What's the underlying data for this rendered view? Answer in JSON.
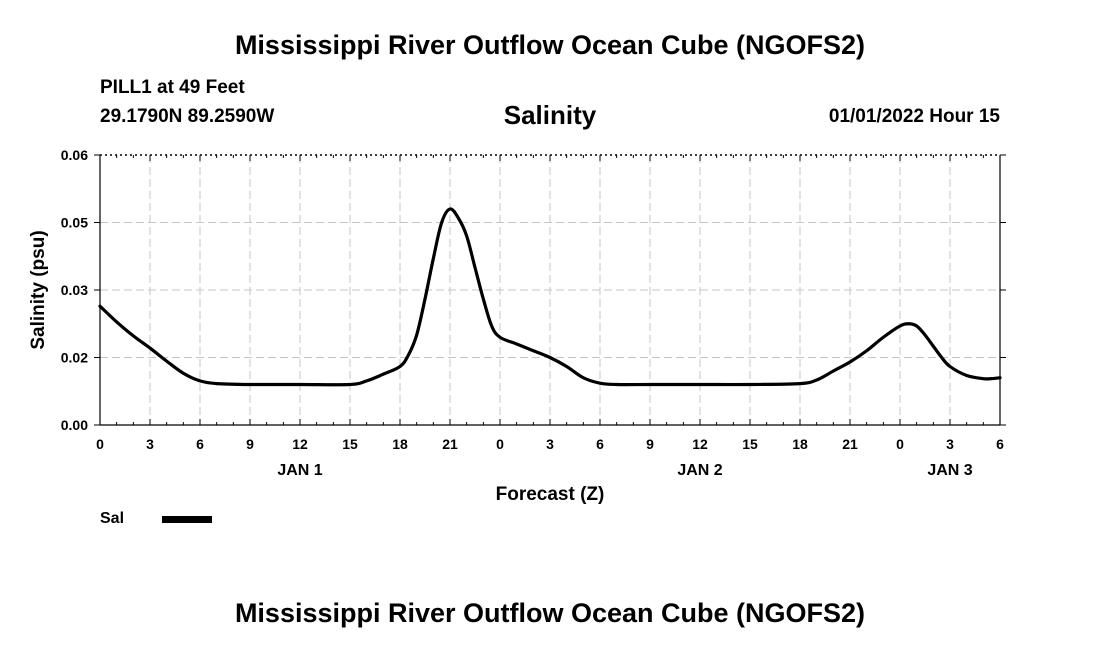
{
  "header": {
    "title": "Mississippi River Outflow Ocean Cube (NGOFS2)",
    "station": "PILL1 at 49 Feet",
    "coordinates": "29.1790N  89.2590W",
    "datetime": "01/01/2022 Hour 15"
  },
  "footer": {
    "title": "Mississippi River Outflow Ocean Cube (NGOFS2)"
  },
  "chart_data": {
    "type": "line",
    "title": "Salinity",
    "xlabel": "Forecast (Z)",
    "ylabel": "Salinity (psu)",
    "x_unit": "forecast hours from 2022-01-01 00Z",
    "xlim": [
      0,
      54
    ],
    "ylim": [
      0,
      0.06
    ],
    "grid": true,
    "y_ticks": [
      {
        "value": 0.0,
        "label": "0.00"
      },
      {
        "value": 0.015,
        "label": "0.02"
      },
      {
        "value": 0.03,
        "label": "0.03"
      },
      {
        "value": 0.045,
        "label": "0.05"
      },
      {
        "value": 0.06,
        "label": "0.06"
      }
    ],
    "x_ticks": [
      {
        "value": 0,
        "label": "0"
      },
      {
        "value": 3,
        "label": "3"
      },
      {
        "value": 6,
        "label": "6"
      },
      {
        "value": 9,
        "label": "9"
      },
      {
        "value": 12,
        "label": "12"
      },
      {
        "value": 15,
        "label": "15"
      },
      {
        "value": 18,
        "label": "18"
      },
      {
        "value": 21,
        "label": "21"
      },
      {
        "value": 24,
        "label": "0"
      },
      {
        "value": 27,
        "label": "3"
      },
      {
        "value": 30,
        "label": "6"
      },
      {
        "value": 33,
        "label": "9"
      },
      {
        "value": 36,
        "label": "12"
      },
      {
        "value": 39,
        "label": "15"
      },
      {
        "value": 42,
        "label": "18"
      },
      {
        "value": 45,
        "label": "21"
      },
      {
        "value": 48,
        "label": "0"
      },
      {
        "value": 51,
        "label": "3"
      },
      {
        "value": 54,
        "label": "6"
      }
    ],
    "date_labels": [
      {
        "value": 12,
        "label": "JAN 1"
      },
      {
        "value": 36,
        "label": "JAN 2"
      },
      {
        "value": 51,
        "label": "JAN 3"
      }
    ],
    "legend_position": "bottom-left",
    "series": [
      {
        "name": "Sal",
        "color": "#000000",
        "x": [
          0,
          1,
          2,
          3,
          4,
          5,
          6,
          7,
          9,
          12,
          15,
          16,
          17,
          18,
          18.5,
          19,
          19.5,
          20,
          20.5,
          21,
          21.5,
          22,
          22.5,
          23,
          23.5,
          24,
          25,
          26,
          27,
          28,
          29,
          30,
          31,
          33,
          36,
          39,
          42,
          43,
          44,
          45,
          46,
          47,
          48,
          48.5,
          49,
          49.5,
          50,
          50.5,
          51,
          52,
          53,
          53.5,
          54
        ],
        "values": [
          0.0264,
          0.0229,
          0.0198,
          0.0171,
          0.0142,
          0.0115,
          0.0098,
          0.0092,
          0.009,
          0.009,
          0.009,
          0.0098,
          0.0113,
          0.013,
          0.0155,
          0.02,
          0.028,
          0.037,
          0.045,
          0.048,
          0.046,
          0.042,
          0.035,
          0.028,
          0.022,
          0.0195,
          0.018,
          0.0165,
          0.015,
          0.013,
          0.0105,
          0.0093,
          0.009,
          0.009,
          0.009,
          0.009,
          0.0092,
          0.01,
          0.012,
          0.014,
          0.0165,
          0.0195,
          0.022,
          0.0225,
          0.022,
          0.02,
          0.0175,
          0.015,
          0.013,
          0.011,
          0.0103,
          0.0103,
          0.0105
        ]
      }
    ]
  }
}
